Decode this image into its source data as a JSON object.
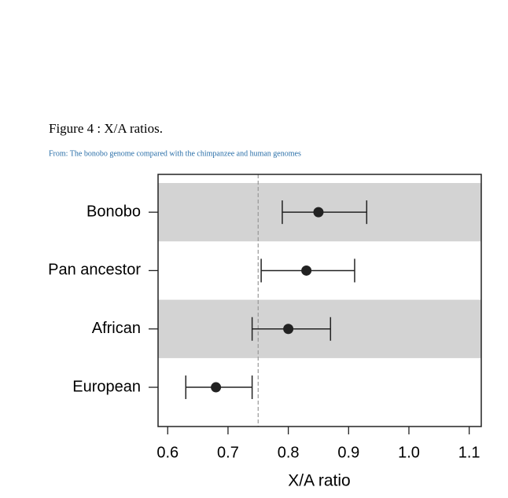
{
  "chart_data": {
    "type": "errorbar",
    "caption": "Figure 4 : X/A ratios.",
    "source": "From: The bonobo genome compared with the chimpanzee and human genomes",
    "x_label": "X/A ratio",
    "categories": [
      "Bonobo",
      "Pan ancestor",
      "African",
      "European"
    ],
    "values": [
      0.85,
      0.83,
      0.8,
      0.68
    ],
    "lower": [
      0.79,
      0.755,
      0.74,
      0.63
    ],
    "upper": [
      0.93,
      0.91,
      0.87,
      0.74
    ],
    "reference_line": 0.75,
    "color": "#222222",
    "band_color": "#d3d3d3",
    "xlim": [
      0.584,
      1.12
    ],
    "xticks": [
      0.6,
      0.7,
      0.8,
      0.9,
      {
        "value": 1,
        "label": "1.0"
      },
      1.1
    ]
  }
}
